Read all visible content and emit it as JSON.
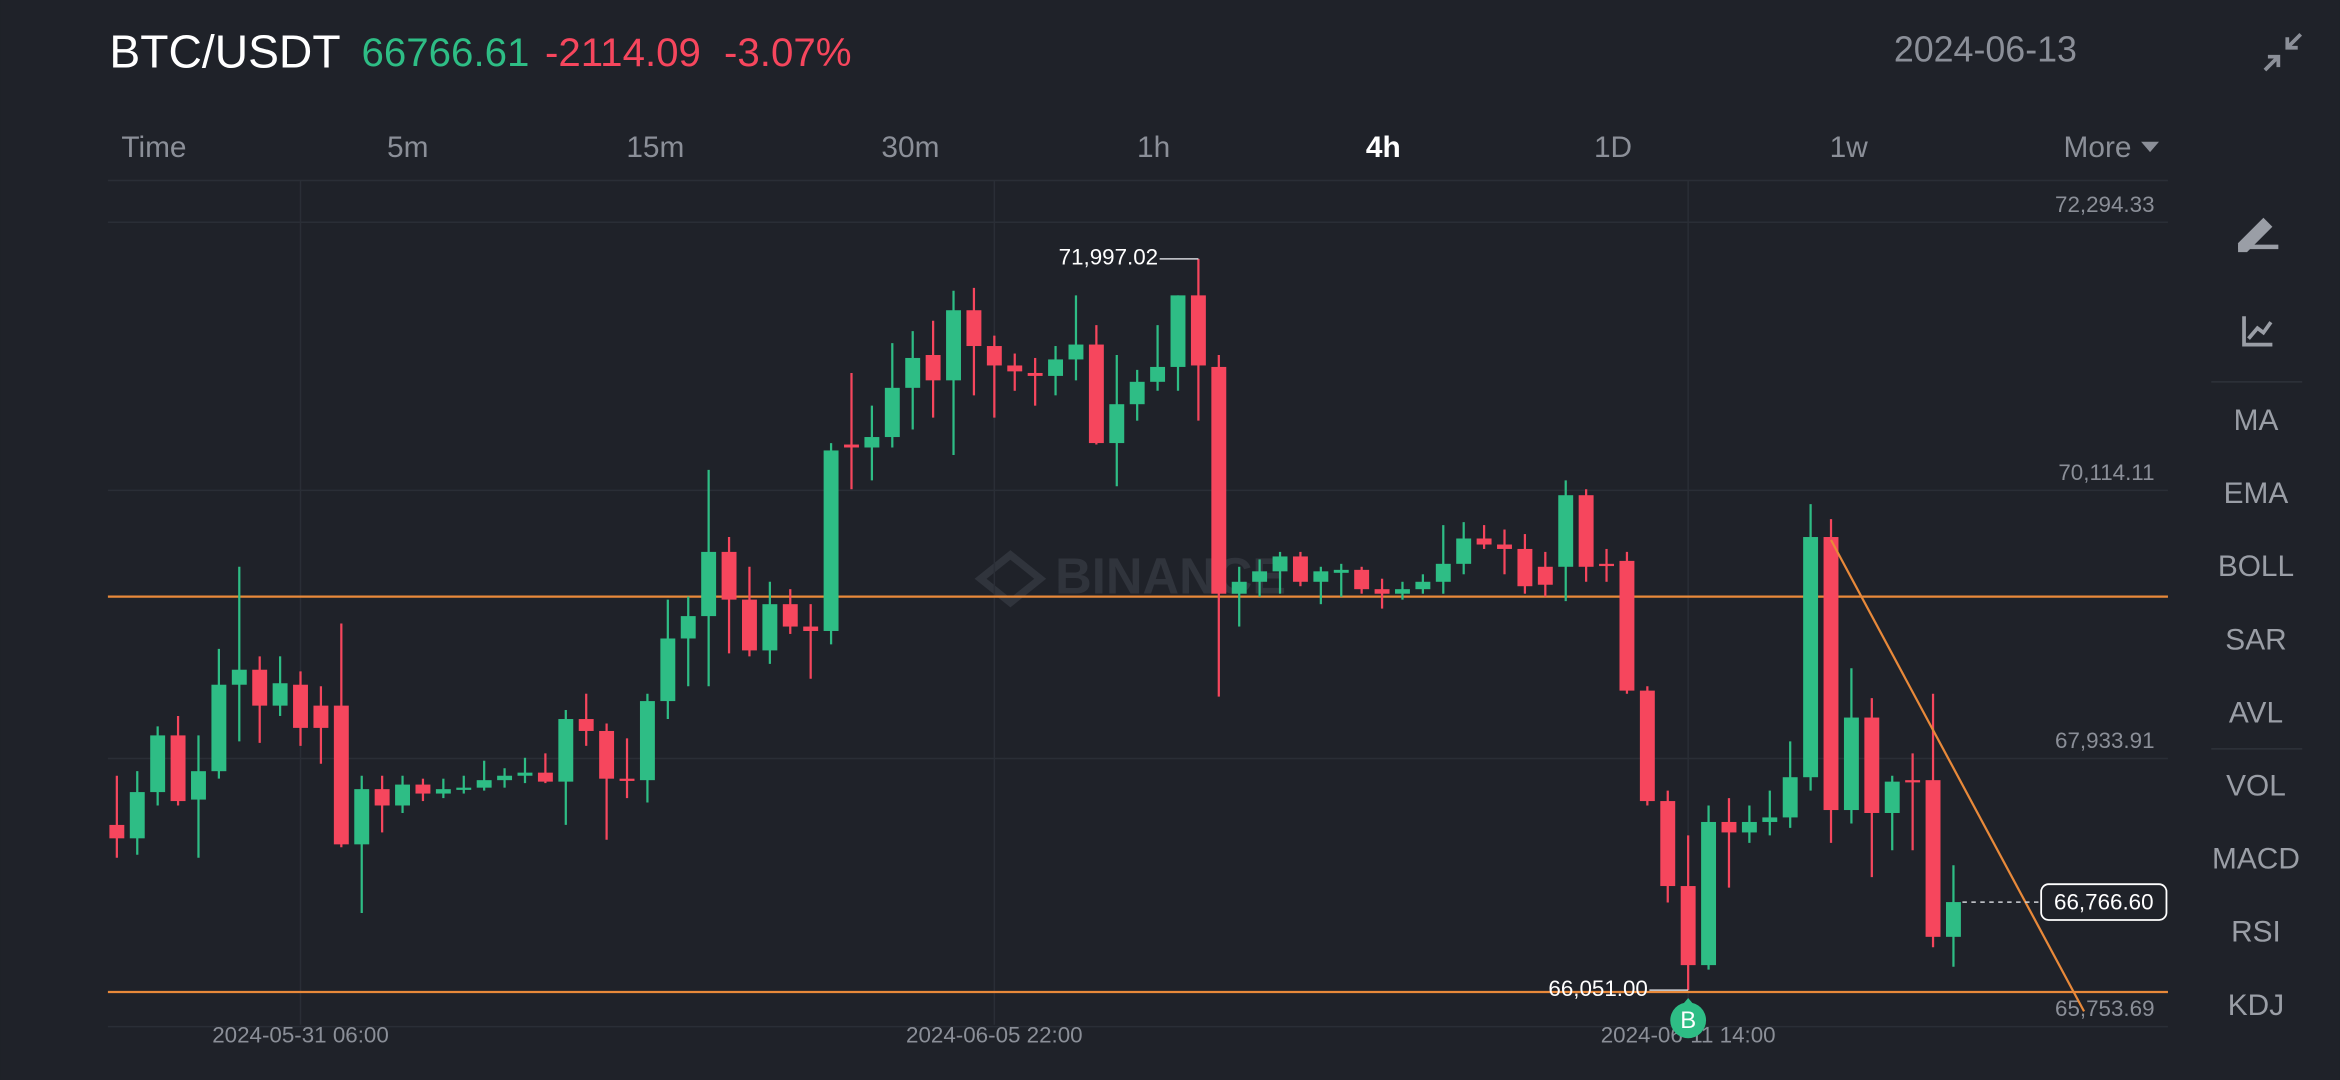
{
  "header": {
    "symbol": "BTC/USDT",
    "price": "66766.61",
    "change": "-2114.09",
    "change_pct": "-3.07%",
    "date": "2024-06-13"
  },
  "tabs": [
    {
      "label": "Time"
    },
    {
      "label": "5m"
    },
    {
      "label": "15m"
    },
    {
      "label": "30m"
    },
    {
      "label": "1h"
    },
    {
      "label": "4h",
      "active": true
    },
    {
      "label": "1D"
    },
    {
      "label": "1w"
    },
    {
      "label": "More"
    }
  ],
  "sidebar": [
    "MA",
    "EMA",
    "BOLL",
    "SAR",
    "AVL",
    "VOL",
    "MACD",
    "RSI",
    "KDJ"
  ],
  "chart_data": {
    "type": "candlestick",
    "watermark": "BINANCE",
    "up_color": "#2ebd85",
    "down_color": "#f6465d",
    "categories": [
      null,
      null,
      null,
      null,
      null,
      null,
      null,
      null,
      null,
      "2024-05-31 06:00",
      null,
      null,
      null,
      null,
      null,
      null,
      null,
      null,
      null,
      null,
      null,
      null,
      null,
      null,
      null,
      null,
      null,
      null,
      null,
      null,
      null,
      null,
      null,
      null,
      null,
      null,
      null,
      null,
      null,
      null,
      null,
      null,
      null,
      "2024-06-05 22:00",
      null,
      null,
      null,
      null,
      null,
      null,
      null,
      null,
      null,
      null,
      null,
      null,
      null,
      null,
      null,
      null,
      null,
      null,
      null,
      null,
      null,
      null,
      null,
      null,
      null,
      null,
      null,
      null,
      null,
      null,
      null,
      null,
      null,
      "2024-06-11 14:00",
      null,
      null,
      null,
      null,
      null,
      null,
      null,
      null,
      null,
      null,
      null,
      null,
      null
    ],
    "open": [
      67394,
      67285,
      67661,
      68122,
      67600,
      67831,
      68534,
      68656,
      68364,
      68534,
      68364,
      68364,
      67236,
      67685,
      67552,
      67722,
      67649,
      67685,
      67697,
      67758,
      67794,
      67819,
      67746,
      68255,
      68158,
      67770,
      67758,
      68401,
      68910,
      69092,
      69614,
      69226,
      68813,
      69189,
      69007,
      68971,
      70487,
      70463,
      70548,
      70948,
      71215,
      71009,
      71579,
      71288,
      71130,
      71069,
      71045,
      71179,
      71300,
      70499,
      70815,
      70997,
      71118,
      71700,
      71118,
      69274,
      69371,
      69456,
      69577,
      69371,
      69444,
      69468,
      69311,
      69274,
      69311,
      69371,
      69517,
      69723,
      69674,
      69638,
      69493,
      69493,
      70075,
      69517,
      69541,
      68486,
      67588,
      66897,
      66254,
      67418,
      67333,
      67418,
      67455,
      67782,
      69735,
      67515,
      68267,
      67491,
      67758,
      67758,
      66484
    ],
    "high": [
      67794,
      67831,
      68195,
      68280,
      68122,
      68825,
      69493,
      68765,
      68765,
      68643,
      68522,
      69032,
      67794,
      67794,
      67794,
      67770,
      67770,
      67794,
      67916,
      67855,
      67940,
      67976,
      68328,
      68461,
      68219,
      68098,
      68461,
      69226,
      69250,
      70281,
      69735,
      69493,
      69371,
      69311,
      69189,
      70499,
      71069,
      70803,
      71312,
      71409,
      71494,
      71737,
      71761,
      71373,
      71227,
      71191,
      71288,
      71700,
      71458,
      71215,
      71094,
      71458,
      71700,
      71997.02,
      71215,
      69493,
      69553,
      69614,
      69614,
      69493,
      69517,
      69493,
      69396,
      69371,
      69432,
      69832,
      69856,
      69832,
      69796,
      69759,
      69614,
      70196,
      70123,
      69638,
      69614,
      68522,
      67673,
      67309,
      67552,
      67612,
      67552,
      67673,
      68073,
      70002,
      69881,
      68668,
      68425,
      67794,
      67976,
      68461,
      67066
    ],
    "low": [
      67127,
      67151,
      67552,
      67552,
      67127,
      67770,
      68073,
      68061,
      68280,
      68037,
      67891,
      67212,
      66678,
      67333,
      67491,
      67588,
      67612,
      67649,
      67673,
      67697,
      67734,
      67734,
      67394,
      68037,
      67273,
      67612,
      67576,
      68255,
      68522,
      68522,
      68789,
      68765,
      68704,
      68947,
      68583,
      68862,
      70123,
      70196,
      70463,
      70609,
      70706,
      70402,
      70887,
      70706,
      70924,
      70803,
      70887,
      71009,
      70487,
      70148,
      70681,
      70924,
      70924,
      70681,
      68437,
      69007,
      69250,
      69274,
      69335,
      69189,
      69250,
      69274,
      69153,
      69226,
      69274,
      69274,
      69432,
      69638,
      69432,
      69274,
      69250,
      69214,
      69371,
      69371,
      68461,
      67552,
      66763,
      66051.0,
      66217,
      66884,
      67248,
      67309,
      67370,
      67673,
      67248,
      67406,
      66970,
      67188,
      67188,
      66399,
      66241
    ],
    "close": [
      67285,
      67661,
      68122,
      67588,
      67831,
      68534,
      68656,
      68364,
      68546,
      68183,
      68183,
      67236,
      67685,
      67552,
      67722,
      67649,
      67685,
      67697,
      67758,
      67794,
      67819,
      67746,
      68255,
      68158,
      67770,
      67758,
      68401,
      68910,
      69092,
      69614,
      69226,
      68813,
      69189,
      69007,
      68971,
      70439,
      70463,
      70548,
      70948,
      71191,
      71009,
      71579,
      71288,
      71130,
      71082,
      71045,
      71179,
      71300,
      70499,
      70815,
      70997,
      71118,
      71700,
      71130,
      69274,
      69371,
      69456,
      69577,
      69371,
      69456,
      69468,
      69311,
      69274,
      69311,
      69371,
      69517,
      69723,
      69674,
      69638,
      69335,
      69347,
      70075,
      69493,
      69505,
      68486,
      67588,
      66897,
      66254,
      67418,
      67333,
      67418,
      67455,
      67782,
      69735,
      67515,
      68267,
      67491,
      67746,
      67740,
      66484,
      66766.6
    ],
    "high_label": "71,997.02",
    "low_label": "66,051.00",
    "last_price_label": "66,766.60",
    "markers": [
      {
        "index": 77,
        "label": "B",
        "color": "#2ebd85"
      }
    ],
    "lines": [
      {
        "value": 69250,
        "color": "#e8893a"
      },
      {
        "value": 66035,
        "color": "#e8893a"
      }
    ],
    "trendline": {
      "color": "#e8893a",
      "start": {
        "index": 84,
        "value": 69711
      },
      "end": {
        "index": 96.4,
        "value": 65878
      }
    },
    "ylim": [
      65611,
      72634
    ],
    "yticks": [
      {
        "value": 72294.33,
        "label": "72,294.33"
      },
      {
        "value": 70114.11,
        "label": "70,114.11"
      },
      {
        "value": 67933.91,
        "label": "67,933.91"
      },
      {
        "value": 65753.69,
        "label": "65,753.69"
      }
    ],
    "grid": true
  }
}
